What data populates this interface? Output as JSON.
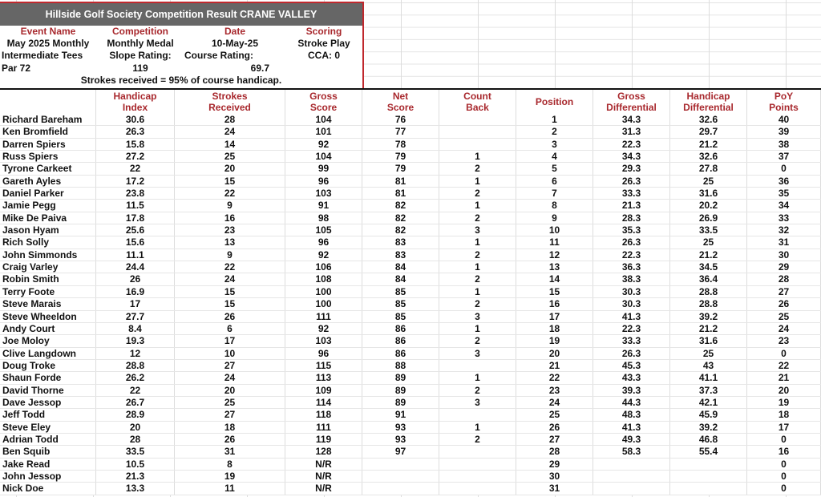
{
  "title": "Hillside Golf Society Competition Result CRANE VALLEY",
  "info": {
    "labels": [
      "Event Name",
      "Competition",
      "Date",
      "Scoring"
    ],
    "values": [
      "May 2025 Monthly",
      "Monthly Medal",
      "10-May-25",
      "Stroke Play"
    ],
    "row3": [
      "Intermediate Tees",
      "Slope Rating:",
      "Course Rating:",
      "CCA: 0"
    ],
    "row4": [
      "Par 72",
      "119",
      "69.7",
      ""
    ],
    "note": "Strokes received = 95% of course handicap."
  },
  "columns": [
    [
      "",
      ""
    ],
    [
      "Handicap",
      "Index"
    ],
    [
      "Strokes",
      "Received"
    ],
    [
      "Gross",
      "Score"
    ],
    [
      "Net",
      "Score"
    ],
    [
      "Count",
      "Back"
    ],
    [
      "Position",
      ""
    ],
    [
      "Gross",
      "Differential"
    ],
    [
      "Handicap",
      "Differential"
    ],
    [
      "PoY",
      "Points"
    ]
  ],
  "rows": [
    [
      "Richard Bareham",
      "30.6",
      "28",
      "104",
      "76",
      "",
      "1",
      "34.3",
      "32.6",
      "40"
    ],
    [
      "Ken Bromfield",
      "26.3",
      "24",
      "101",
      "77",
      "",
      "2",
      "31.3",
      "29.7",
      "39"
    ],
    [
      "Darren Spiers",
      "15.8",
      "14",
      "92",
      "78",
      "",
      "3",
      "22.3",
      "21.2",
      "38"
    ],
    [
      "Russ Spiers",
      "27.2",
      "25",
      "104",
      "79",
      "1",
      "4",
      "34.3",
      "32.6",
      "37"
    ],
    [
      "Tyrone Carkeet",
      "22",
      "20",
      "99",
      "79",
      "2",
      "5",
      "29.3",
      "27.8",
      "0"
    ],
    [
      "Gareth Ayles",
      "17.2",
      "15",
      "96",
      "81",
      "1",
      "6",
      "26.3",
      "25",
      "36"
    ],
    [
      "Daniel Parker",
      "23.8",
      "22",
      "103",
      "81",
      "2",
      "7",
      "33.3",
      "31.6",
      "35"
    ],
    [
      "Jamie Pegg",
      "11.5",
      "9",
      "91",
      "82",
      "1",
      "8",
      "21.3",
      "20.2",
      "34"
    ],
    [
      "Mike De Paiva",
      "17.8",
      "16",
      "98",
      "82",
      "2",
      "9",
      "28.3",
      "26.9",
      "33"
    ],
    [
      "Jason Hyam",
      "25.6",
      "23",
      "105",
      "82",
      "3",
      "10",
      "35.3",
      "33.5",
      "32"
    ],
    [
      "Rich Solly",
      "15.6",
      "13",
      "96",
      "83",
      "1",
      "11",
      "26.3",
      "25",
      "31"
    ],
    [
      "John Simmonds",
      "11.1",
      "9",
      "92",
      "83",
      "2",
      "12",
      "22.3",
      "21.2",
      "30"
    ],
    [
      "Craig Varley",
      "24.4",
      "22",
      "106",
      "84",
      "1",
      "13",
      "36.3",
      "34.5",
      "29"
    ],
    [
      "Robin Smith",
      "26",
      "24",
      "108",
      "84",
      "2",
      "14",
      "38.3",
      "36.4",
      "28"
    ],
    [
      "Terry Foote",
      "16.9",
      "15",
      "100",
      "85",
      "1",
      "15",
      "30.3",
      "28.8",
      "27"
    ],
    [
      "Steve Marais",
      "17",
      "15",
      "100",
      "85",
      "2",
      "16",
      "30.3",
      "28.8",
      "26"
    ],
    [
      "Steve Wheeldon",
      "27.7",
      "26",
      "111",
      "85",
      "3",
      "17",
      "41.3",
      "39.2",
      "25"
    ],
    [
      "Andy Court",
      "8.4",
      "6",
      "92",
      "86",
      "1",
      "18",
      "22.3",
      "21.2",
      "24"
    ],
    [
      "Joe Moloy",
      "19.3",
      "17",
      "103",
      "86",
      "2",
      "19",
      "33.3",
      "31.6",
      "23"
    ],
    [
      "Clive Langdown",
      "12",
      "10",
      "96",
      "86",
      "3",
      "20",
      "26.3",
      "25",
      "0"
    ],
    [
      "Doug Troke",
      "28.8",
      "27",
      "115",
      "88",
      "",
      "21",
      "45.3",
      "43",
      "22"
    ],
    [
      "Shaun Forde",
      "26.2",
      "24",
      "113",
      "89",
      "1",
      "22",
      "43.3",
      "41.1",
      "21"
    ],
    [
      "David Thorne",
      "22",
      "20",
      "109",
      "89",
      "2",
      "23",
      "39.3",
      "37.3",
      "20"
    ],
    [
      "Dave Jessop",
      "26.7",
      "25",
      "114",
      "89",
      "3",
      "24",
      "44.3",
      "42.1",
      "19"
    ],
    [
      "Jeff Todd",
      "28.9",
      "27",
      "118",
      "91",
      "",
      "25",
      "48.3",
      "45.9",
      "18"
    ],
    [
      "Steve Eley",
      "20",
      "18",
      "111",
      "93",
      "1",
      "26",
      "41.3",
      "39.2",
      "17"
    ],
    [
      "Adrian Todd",
      "28",
      "26",
      "119",
      "93",
      "2",
      "27",
      "49.3",
      "46.8",
      "0"
    ],
    [
      "Ben Squib",
      "33.5",
      "31",
      "128",
      "97",
      "",
      "28",
      "58.3",
      "55.4",
      "16"
    ],
    [
      "Jake Read",
      "10.5",
      "8",
      "N/R",
      "",
      "",
      "29",
      "",
      "",
      "0"
    ],
    [
      "John Jessop",
      "21.3",
      "19",
      "N/R",
      "",
      "",
      "30",
      "",
      "",
      "0"
    ],
    [
      "Nick Doe",
      "13.3",
      "11",
      "N/R",
      "",
      "",
      "31",
      "",
      "",
      "0"
    ]
  ],
  "colors": {
    "header_red": "#a8282d",
    "title_bg": "#666666",
    "border_red": "#c0282d"
  }
}
